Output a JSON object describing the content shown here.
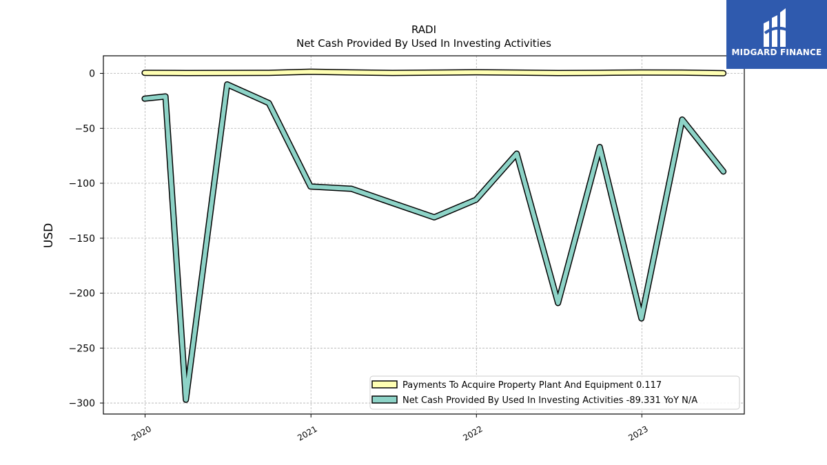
{
  "chart_data": {
    "type": "line",
    "title": "RADI",
    "subtitle": "Net Cash Provided By Used In Investing Activities",
    "xlabel": "",
    "ylabel": "USD",
    "xlim": [
      "2019-10-01",
      "2023-08-15"
    ],
    "ylim": [
      -310,
      16
    ],
    "yticks": [
      0,
      -50,
      -100,
      -150,
      -200,
      -250,
      -300
    ],
    "ytick_labels": [
      "0",
      "−50",
      "−100",
      "−150",
      "−200",
      "−250",
      "−300"
    ],
    "xticks": [
      "2020-01-01",
      "2021-01-01",
      "2022-01-01",
      "2023-01-01"
    ],
    "xtick_labels": [
      "2020",
      "2021",
      "2022",
      "2023"
    ],
    "grid": true,
    "legend_placement": "lower-right",
    "series": [
      {
        "name": "Payments To Acquire Property Plant And Equipment",
        "legend_label": "Payments To Acquire Property Plant And Equipment  0.117",
        "color": "#ffffb3",
        "x": [
          "2019-12-31",
          "2020-03-31",
          "2020-06-30",
          "2020-09-30",
          "2020-12-31",
          "2021-03-31",
          "2021-06-30",
          "2021-09-30",
          "2021-12-31",
          "2022-03-31",
          "2022-06-30",
          "2022-09-30",
          "2022-12-31",
          "2023-03-31",
          "2023-06-30"
        ],
        "values": [
          0.5,
          0.3,
          0.4,
          0.5,
          1.5,
          0.9,
          0.4,
          0.7,
          1.0,
          0.7,
          0.3,
          0.5,
          0.8,
          0.7,
          0.117
        ]
      },
      {
        "name": "Net Cash Provided By Used In Investing Activities",
        "legend_label": "Net Cash Provided By Used In Investing Activities  -89.331 YoY N/A",
        "color": "#8dd3c7",
        "x": [
          "2019-12-31",
          "2020-02-15",
          "2020-03-31",
          "2020-06-30",
          "2020-09-30",
          "2020-12-31",
          "2021-03-31",
          "2021-06-30",
          "2021-09-30",
          "2021-12-31",
          "2022-03-31",
          "2022-06-30",
          "2022-09-30",
          "2022-12-31",
          "2023-03-31",
          "2023-06-30"
        ],
        "values": [
          -23,
          -21,
          -297,
          -10,
          -27,
          -103,
          -105,
          -118,
          -131,
          -115,
          -73,
          -209,
          -67,
          -223,
          -42,
          -89.331
        ]
      }
    ]
  },
  "logo": {
    "text": "MIDGARD FINANCE",
    "bg": "#2f5aae"
  }
}
